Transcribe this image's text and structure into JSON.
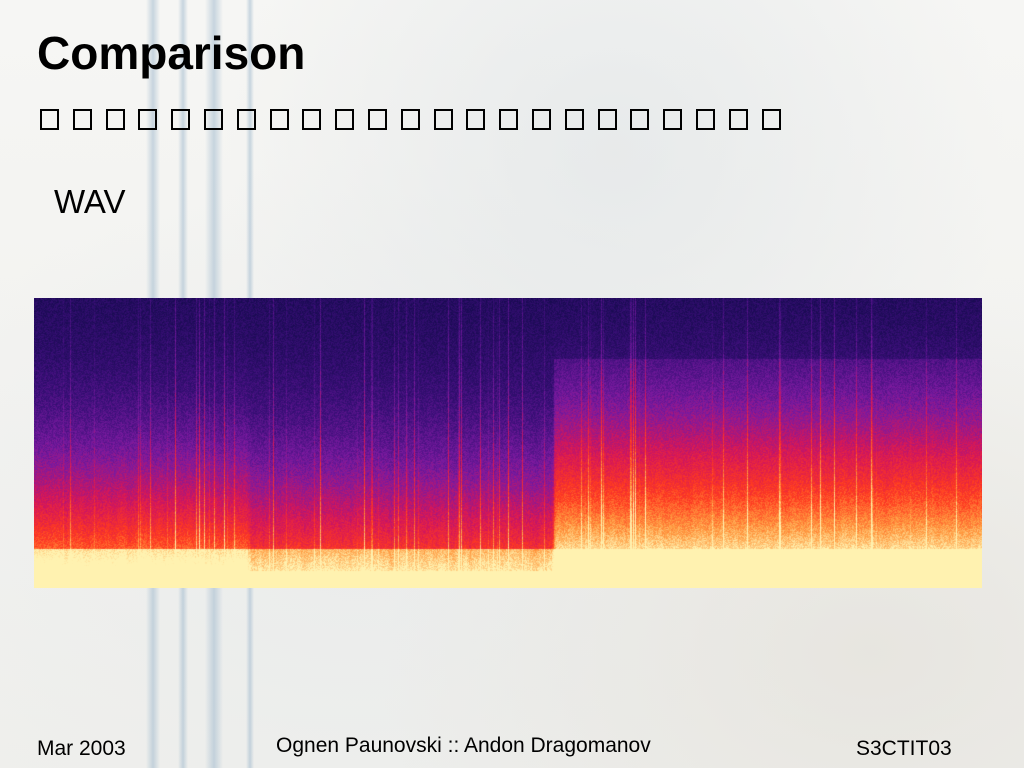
{
  "slide": {
    "title": "Comparison",
    "subtitle_glyph_count": 23,
    "label": "WAV"
  },
  "figure": {
    "type": "spectrogram",
    "colormap": [
      "#120a4a",
      "#3a0f78",
      "#7a1aa0",
      "#d4165a",
      "#ff3a20",
      "#ff9a40",
      "#fff2b0"
    ]
  },
  "footer": {
    "date": "Mar 2003",
    "authors": "Ognen Paunovski :: Andon Dragomanov",
    "code": "S3CTIT03"
  }
}
